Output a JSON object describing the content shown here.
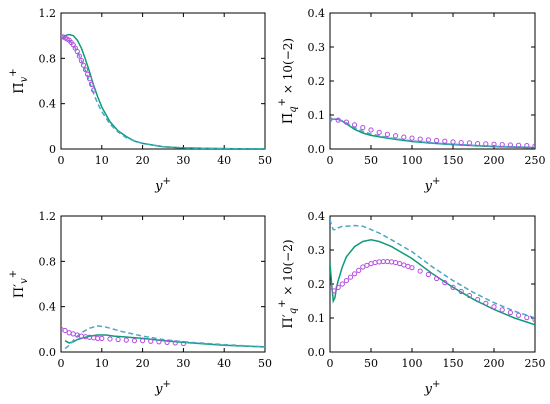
{
  "colors": {
    "solid": "#0f9a78",
    "dashed": "#4aa7c9",
    "marker": "#b44ce0"
  },
  "chart_data": [
    {
      "type": "line",
      "ylabel": "Π̄v+",
      "xlabel": "y+",
      "xlim": [
        0,
        50
      ],
      "ylim": [
        0,
        1.2
      ],
      "xticks": [
        0,
        10,
        20,
        30,
        40,
        50
      ],
      "yticks": [
        0,
        0.4,
        0.8,
        1.2
      ],
      "xtick_labels": [
        "0",
        "10",
        "20",
        "30",
        "40",
        "50"
      ],
      "ytick_labels": [
        "0",
        "0.4",
        "0.8",
        "1.2"
      ],
      "series": [
        {
          "style": "solid",
          "x": [
            0,
            1,
            2,
            3,
            4,
            5,
            6,
            7,
            8,
            9,
            10,
            12,
            14,
            16,
            18,
            20,
            25,
            30,
            40,
            50
          ],
          "values": [
            0.97,
            1.0,
            1.01,
            1.0,
            0.96,
            0.89,
            0.79,
            0.68,
            0.56,
            0.46,
            0.37,
            0.24,
            0.16,
            0.11,
            0.07,
            0.05,
            0.02,
            0.01,
            0.003,
            0.001
          ]
        },
        {
          "style": "dashed",
          "x": [
            0,
            1,
            2,
            3,
            4,
            5,
            6,
            7,
            8,
            9,
            10,
            12,
            14,
            16,
            18,
            20,
            25,
            30,
            40,
            50
          ],
          "values": [
            0.99,
            0.98,
            0.96,
            0.92,
            0.86,
            0.78,
            0.69,
            0.59,
            0.49,
            0.4,
            0.33,
            0.22,
            0.15,
            0.1,
            0.07,
            0.05,
            0.02,
            0.01,
            0.003,
            0.001
          ]
        },
        {
          "style": "markers",
          "x": [
            0,
            0.5,
            1,
            1.5,
            2,
            2.5,
            3,
            3.5,
            4,
            4.5,
            5,
            5.5,
            6,
            6.5,
            7,
            7.5,
            8
          ],
          "values": [
            0.99,
            0.99,
            0.98,
            0.97,
            0.96,
            0.94,
            0.92,
            0.89,
            0.86,
            0.82,
            0.78,
            0.74,
            0.7,
            0.66,
            0.62,
            0.57,
            0.52
          ]
        }
      ]
    },
    {
      "type": "line",
      "ylabel": "Π̄q+ × 10(−2)",
      "xlabel": "y+",
      "xlim": [
        0,
        250
      ],
      "ylim": [
        0,
        0.4
      ],
      "xticks": [
        0,
        50,
        100,
        150,
        200,
        250
      ],
      "yticks": [
        0,
        0.1,
        0.2,
        0.3,
        0.4
      ],
      "xtick_labels": [
        "0",
        "50",
        "100",
        "150",
        "200",
        "250"
      ],
      "ytick_labels": [
        "0.0",
        "0.1",
        "0.2",
        "0.3",
        "0.4"
      ],
      "series": [
        {
          "style": "solid",
          "x": [
            0,
            5,
            10,
            15,
            20,
            30,
            40,
            50,
            75,
            100,
            125,
            150,
            200,
            250
          ],
          "values": [
            0.087,
            0.088,
            0.087,
            0.082,
            0.074,
            0.058,
            0.047,
            0.04,
            0.03,
            0.022,
            0.017,
            0.013,
            0.007,
            0.004
          ]
        },
        {
          "style": "dashed",
          "x": [
            0,
            5,
            10,
            15,
            20,
            30,
            40,
            50,
            75,
            100,
            125,
            150,
            200,
            250
          ],
          "values": [
            0.087,
            0.088,
            0.087,
            0.083,
            0.077,
            0.063,
            0.052,
            0.044,
            0.032,
            0.024,
            0.018,
            0.014,
            0.008,
            0.005
          ]
        },
        {
          "style": "markers",
          "x": [
            0,
            10,
            20,
            30,
            40,
            50,
            60,
            70,
            80,
            90,
            100,
            110,
            120,
            130,
            140,
            150,
            160,
            170,
            180,
            190,
            200,
            210,
            220,
            230,
            240,
            250
          ],
          "values": [
            0.087,
            0.085,
            0.079,
            0.071,
            0.063,
            0.056,
            0.049,
            0.043,
            0.039,
            0.035,
            0.032,
            0.029,
            0.027,
            0.025,
            0.023,
            0.021,
            0.019,
            0.018,
            0.016,
            0.015,
            0.014,
            0.013,
            0.012,
            0.011,
            0.01,
            0.009
          ]
        }
      ]
    },
    {
      "type": "line",
      "ylabel": "Π′v+",
      "xlabel": "y+",
      "xlim": [
        0,
        50
      ],
      "ylim": [
        0,
        1.2
      ],
      "xticks": [
        0,
        10,
        20,
        30,
        40,
        50
      ],
      "yticks": [
        0,
        0.4,
        0.8,
        1.2
      ],
      "xtick_labels": [
        "0",
        "10",
        "20",
        "30",
        "40",
        "50"
      ],
      "ytick_labels": [
        "0.0",
        "0.4",
        "0.8",
        "1.2"
      ],
      "series": [
        {
          "style": "solid",
          "x": [
            1,
            2,
            3,
            4,
            5,
            7,
            9,
            11,
            13,
            15,
            20,
            25,
            30,
            40,
            50
          ],
          "values": [
            0.1,
            0.08,
            0.09,
            0.11,
            0.12,
            0.14,
            0.15,
            0.15,
            0.14,
            0.135,
            0.12,
            0.1,
            0.085,
            0.06,
            0.045
          ]
        },
        {
          "style": "dashed",
          "x": [
            1,
            2,
            3,
            4,
            5,
            7,
            9,
            11,
            13,
            15,
            20,
            25,
            30,
            40,
            50
          ],
          "values": [
            0.03,
            0.06,
            0.1,
            0.14,
            0.17,
            0.21,
            0.23,
            0.22,
            0.2,
            0.18,
            0.14,
            0.11,
            0.09,
            0.065,
            0.045
          ]
        },
        {
          "style": "markers",
          "x": [
            0,
            1,
            2,
            3,
            4,
            5,
            6,
            7,
            8,
            9,
            10,
            12,
            14,
            16,
            18,
            20,
            22,
            24,
            26,
            28,
            30
          ],
          "values": [
            0.2,
            0.19,
            0.17,
            0.16,
            0.15,
            0.14,
            0.135,
            0.13,
            0.125,
            0.12,
            0.12,
            0.115,
            0.11,
            0.105,
            0.1,
            0.1,
            0.095,
            0.09,
            0.085,
            0.08,
            0.075
          ]
        }
      ]
    },
    {
      "type": "line",
      "ylabel": "Π′q+ × 10(−2)",
      "xlabel": "y+",
      "xlim": [
        0,
        250
      ],
      "ylim": [
        0,
        0.4
      ],
      "xticks": [
        0,
        50,
        100,
        150,
        200,
        250
      ],
      "yticks": [
        0,
        0.1,
        0.2,
        0.3,
        0.4
      ],
      "xtick_labels": [
        "0",
        "50",
        "100",
        "150",
        "200",
        "250"
      ],
      "ytick_labels": [
        "0.0",
        "0.1",
        "0.2",
        "0.3",
        "0.4"
      ],
      "series": [
        {
          "style": "solid",
          "x": [
            0,
            2,
            4,
            6,
            8,
            10,
            15,
            20,
            30,
            40,
            50,
            60,
            75,
            100,
            125,
            150,
            175,
            200,
            225,
            250
          ],
          "values": [
            0.26,
            0.2,
            0.15,
            0.16,
            0.19,
            0.21,
            0.25,
            0.28,
            0.31,
            0.325,
            0.33,
            0.325,
            0.31,
            0.275,
            0.23,
            0.19,
            0.155,
            0.125,
            0.1,
            0.08
          ]
        },
        {
          "style": "dashed",
          "x": [
            0,
            2,
            4,
            6,
            8,
            10,
            15,
            20,
            30,
            40,
            50,
            60,
            75,
            100,
            125,
            150,
            175,
            200,
            225,
            250
          ],
          "values": [
            0.39,
            0.37,
            0.36,
            0.36,
            0.36,
            0.365,
            0.37,
            0.37,
            0.372,
            0.37,
            0.36,
            0.35,
            0.33,
            0.295,
            0.25,
            0.21,
            0.175,
            0.145,
            0.12,
            0.1
          ]
        },
        {
          "style": "markers",
          "x": [
            0,
            5,
            10,
            15,
            20,
            25,
            30,
            35,
            40,
            45,
            50,
            55,
            60,
            65,
            70,
            75,
            80,
            85,
            90,
            95,
            100,
            110,
            120,
            130,
            140,
            150,
            160,
            170,
            180,
            190,
            200,
            210,
            220,
            230,
            240,
            250
          ],
          "values": [
            0.19,
            0.18,
            0.19,
            0.2,
            0.21,
            0.22,
            0.23,
            0.24,
            0.25,
            0.255,
            0.26,
            0.263,
            0.265,
            0.266,
            0.266,
            0.265,
            0.263,
            0.26,
            0.256,
            0.252,
            0.248,
            0.238,
            0.228,
            0.216,
            0.204,
            0.19,
            0.178,
            0.166,
            0.154,
            0.143,
            0.133,
            0.124,
            0.116,
            0.108,
            0.101,
            0.095
          ]
        }
      ]
    }
  ]
}
